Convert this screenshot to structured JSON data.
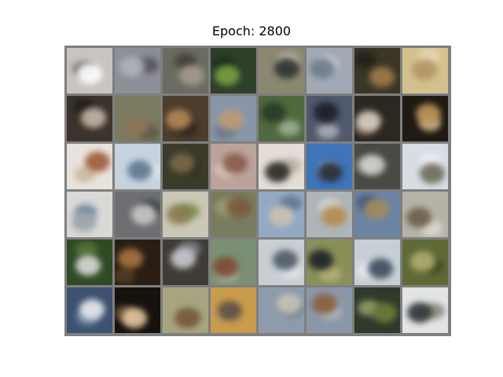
{
  "title": "Epoch: 2800",
  "grid": {
    "rows": 6,
    "cols": 8,
    "background": "#7f7f7f",
    "tiles": [
      {
        "name": "sample-car-white",
        "bg": "#c9c4c2",
        "blob": "#ffffff",
        "blob2": "#6a6260"
      },
      {
        "name": "sample-blur-gray",
        "bg": "#8c8f98",
        "blob": "#b0b2b9",
        "blob2": "#4f4c52"
      },
      {
        "name": "sample-animal-brown",
        "bg": "#6b6c61",
        "blob": "#a49a8f",
        "blob2": "#3f3a33"
      },
      {
        "name": "sample-frog-green",
        "bg": "#2e3f2a",
        "blob": "#77a241",
        "blob2": "#1d2a1c"
      },
      {
        "name": "sample-car-dark",
        "bg": "#8c8770",
        "blob": "#2f3133",
        "blob2": "#c4c2bc"
      },
      {
        "name": "sample-ship-gray",
        "bg": "#a1aab4",
        "blob": "#6b7b88",
        "blob2": "#d3d7db"
      },
      {
        "name": "sample-animal-dark",
        "bg": "#3b3626",
        "blob": "#a07c48",
        "blob2": "#1f1c15"
      },
      {
        "name": "sample-deer-tan",
        "bg": "#d3c08f",
        "blob": "#b19564",
        "blob2": "#e7d8b6"
      },
      {
        "name": "sample-blur-dark",
        "bg": "#3c342c",
        "blob": "#c4b6a8",
        "blob2": "#1f1a14"
      },
      {
        "name": "sample-animal-olive",
        "bg": "#7a7a61",
        "blob": "#8f7457",
        "blob2": "#5a5645"
      },
      {
        "name": "sample-dog-brown",
        "bg": "#4d3d2d",
        "blob": "#b48759",
        "blob2": "#2c241c"
      },
      {
        "name": "sample-bird-blue",
        "bg": "#8896a7",
        "blob": "#c19a72",
        "blob2": "#6c7887"
      },
      {
        "name": "sample-field-green",
        "bg": "#4f6a3f",
        "blob": "#2c3a28",
        "blob2": "#a8b6a0"
      },
      {
        "name": "sample-car-navy",
        "bg": "#515a6d",
        "blob": "#1c1f27",
        "blob2": "#b2b6bf"
      },
      {
        "name": "sample-dog-white",
        "bg": "#2d2721",
        "blob": "#d9cfc4",
        "blob2": "#8b7a66"
      },
      {
        "name": "sample-dog-tan",
        "bg": "#1f1a12",
        "blob": "#c09559",
        "blob2": "#e2c696"
      },
      {
        "name": "sample-horse-brown",
        "bg": "#e9e3dd",
        "blob": "#9c5a35",
        "blob2": "#c8b29a"
      },
      {
        "name": "sample-ship-sky",
        "bg": "#c6d3df",
        "blob": "#5c7790",
        "blob2": "#e8eef3"
      },
      {
        "name": "sample-animal-forest",
        "bg": "#3a3b2a",
        "blob": "#7b6a4a",
        "blob2": "#22241a"
      },
      {
        "name": "sample-horse-pink",
        "bg": "#bba39c",
        "blob": "#8a5a48",
        "blob2": "#dcc8c1"
      },
      {
        "name": "sample-dog-black",
        "bg": "#e3ddd6",
        "blob": "#2a2622",
        "blob2": "#b8aca0"
      },
      {
        "name": "sample-dog-blue",
        "bg": "#3f74b8",
        "blob": "#2a2a30",
        "blob2": "#9ab8dc"
      },
      {
        "name": "sample-dog-pale",
        "bg": "#4a4a45",
        "blob": "#d3d1cc",
        "blob2": "#9a968e"
      },
      {
        "name": "sample-deer-sky",
        "bg": "#d6dde3",
        "blob": "#6c6a58",
        "blob2": "#eef1f3"
      },
      {
        "name": "sample-ship-white",
        "bg": "#d9d9d6",
        "blob": "#9aa4ab",
        "blob2": "#5d7a96"
      },
      {
        "name": "sample-car-gray",
        "bg": "#6d6f73",
        "blob": "#c9c9c9",
        "blob2": "#2f3135"
      },
      {
        "name": "sample-field-tan",
        "bg": "#cbc7b7",
        "blob": "#8a7a4f",
        "blob2": "#6e8a4a"
      },
      {
        "name": "sample-horse-field",
        "bg": "#7a7c5f",
        "blob": "#7a5a3d",
        "blob2": "#a3a27d"
      },
      {
        "name": "sample-bird-sky",
        "bg": "#92a9c4",
        "blob": "#cdc1b3",
        "blob2": "#5d708a"
      },
      {
        "name": "sample-dog-gold",
        "bg": "#aeb4b7",
        "blob": "#b48b4c",
        "blob2": "#d7d9d9"
      },
      {
        "name": "sample-ship-blue",
        "bg": "#6c84a3",
        "blob": "#a58a5c",
        "blob2": "#3f5672"
      },
      {
        "name": "sample-truck-gray",
        "bg": "#b7b2a8",
        "blob": "#6b5e4a",
        "blob2": "#e0ddd7"
      },
      {
        "name": "sample-bird-green",
        "bg": "#2f4b25",
        "blob": "#d9dcd8",
        "blob2": "#5c7a3a"
      },
      {
        "name": "sample-horse-dark",
        "bg": "#2a1e14",
        "blob": "#a8743f",
        "blob2": "#5a4026"
      },
      {
        "name": "sample-truck-white",
        "bg": "#3f3c38",
        "blob": "#c9cbd0",
        "blob2": "#8a8d93"
      },
      {
        "name": "sample-horse-grass",
        "bg": "#7b8f74",
        "blob": "#7c4a34",
        "blob2": "#a9b8a1"
      },
      {
        "name": "sample-bird-white",
        "bg": "#c8ced4",
        "blob": "#4e5a68",
        "blob2": "#e5e8eb"
      },
      {
        "name": "sample-cat-grass",
        "bg": "#8a8f5a",
        "blob": "#1f2326",
        "blob2": "#b7b47a"
      },
      {
        "name": "sample-ship-pale",
        "bg": "#c7cfd6",
        "blob": "#3c4b5d",
        "blob2": "#eceff2"
      },
      {
        "name": "sample-animal-moss",
        "bg": "#5f6a36",
        "blob": "#b1ad72",
        "blob2": "#3b421f"
      },
      {
        "name": "sample-plane-blue",
        "bg": "#3d5271",
        "blob": "#e8ecf0",
        "blob2": "#7f95ae"
      },
      {
        "name": "sample-dog-cream",
        "bg": "#15110d",
        "blob": "#e7c9a1",
        "blob2": "#7a5d3e"
      },
      {
        "name": "sample-deer-green",
        "bg": "#a7a580",
        "blob": "#7a5a3a",
        "blob2": "#6f8a52"
      },
      {
        "name": "sample-ostrich-tan",
        "bg": "#c99c4d",
        "blob": "#5a4e40",
        "blob2": "#e0c08b"
      },
      {
        "name": "sample-plane-gray",
        "bg": "#8e9bab",
        "blob": "#c7c4b8",
        "blob2": "#66727f"
      },
      {
        "name": "sample-bird-brown",
        "bg": "#8a97a7",
        "blob": "#8b5f3a",
        "blob2": "#b3bcc6"
      },
      {
        "name": "sample-frog-dark",
        "bg": "#2e3a2a",
        "blob": "#6a7d3a",
        "blob2": "#a4a772"
      },
      {
        "name": "sample-truck-dark",
        "bg": "#e2e4e6",
        "blob": "#2f3234",
        "blob2": "#7d7b6a"
      }
    ]
  }
}
